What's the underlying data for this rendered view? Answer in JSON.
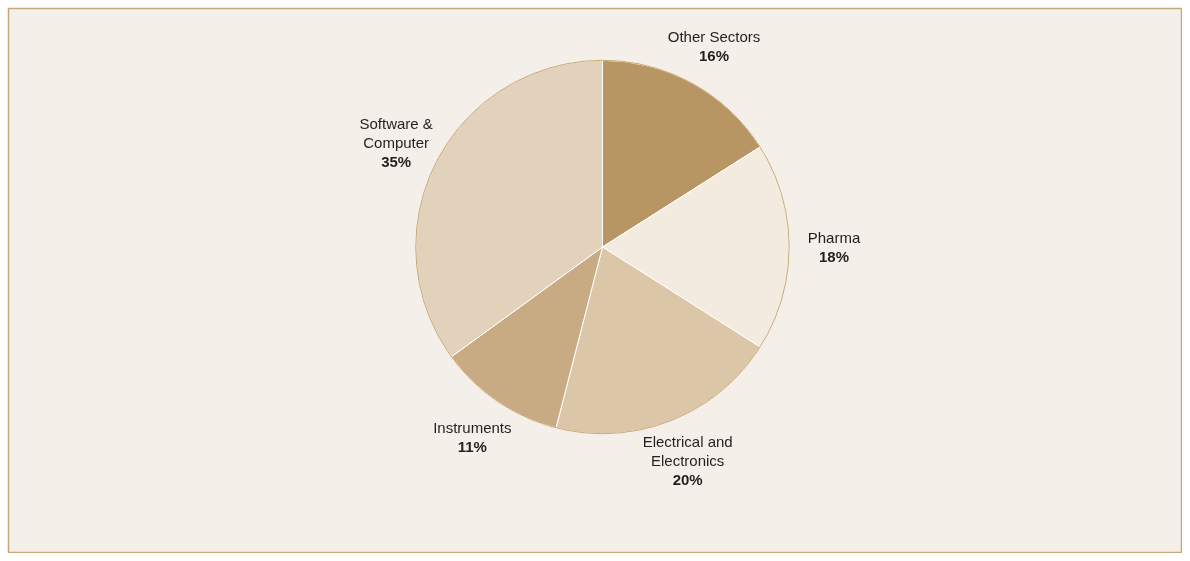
{
  "chart_data": {
    "type": "pie",
    "categories": [
      "Other Sectors",
      "Pharma",
      "Electrical and Electronics",
      "Instruments",
      "Software & Computer"
    ],
    "values": [
      16,
      18,
      20,
      11,
      35
    ],
    "colors": [
      "#b89664",
      "#f3ebe0",
      "#dbc7a8",
      "#c9ab83",
      "#e2d2bc"
    ],
    "value_labels": [
      "16%",
      "18%",
      "20%",
      "11%",
      "35%"
    ]
  }
}
